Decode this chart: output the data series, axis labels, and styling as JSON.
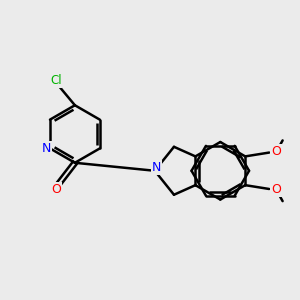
{
  "background_color": "#ebebeb",
  "bond_color": "#000000",
  "atom_colors": {
    "N": "#0000ff",
    "O": "#ff0000",
    "Cl": "#00b300",
    "C": "#000000"
  },
  "bond_width": 1.8,
  "lw": 1.8
}
